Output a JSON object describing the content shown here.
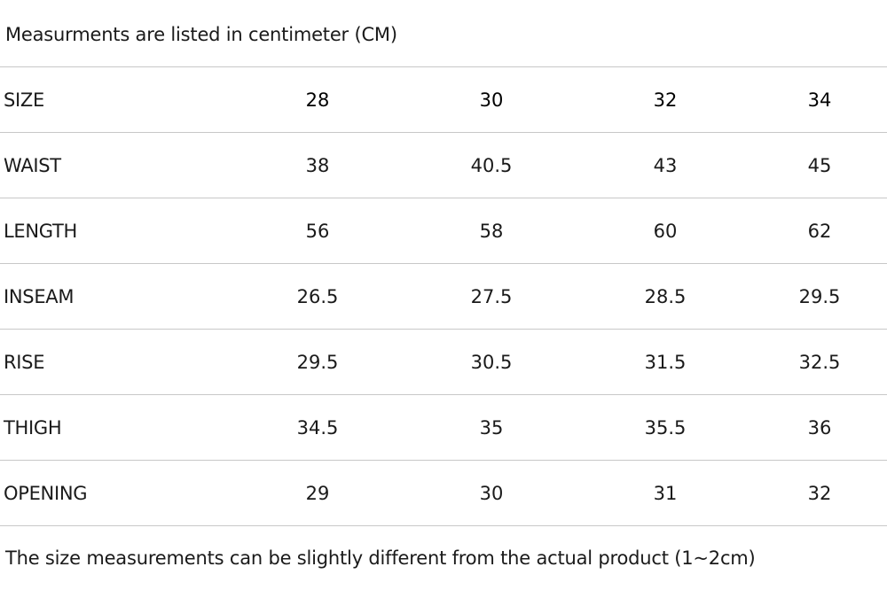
{
  "intro_note": "Measurments are listed in centimeter (CM)",
  "table": {
    "header": {
      "label": "SIZE",
      "sizes": [
        "28",
        "30",
        "32",
        "34"
      ]
    },
    "rows": [
      {
        "label": "WAIST",
        "values": [
          "38",
          "40.5",
          "43",
          "45"
        ]
      },
      {
        "label": "LENGTH",
        "values": [
          "56",
          "58",
          "60",
          "62"
        ]
      },
      {
        "label": "INSEAM",
        "values": [
          "26.5",
          "27.5",
          "28.5",
          "29.5"
        ]
      },
      {
        "label": "RISE",
        "values": [
          "29.5",
          "30.5",
          "31.5",
          "32.5"
        ]
      },
      {
        "label": "THIGH",
        "values": [
          "34.5",
          "35",
          "35.5",
          "36"
        ]
      },
      {
        "label": "OPENING",
        "values": [
          "29",
          "30",
          "31",
          "32"
        ]
      }
    ]
  },
  "footer_note": "The size measurements can be slightly different from the actual product (1~2cm)"
}
